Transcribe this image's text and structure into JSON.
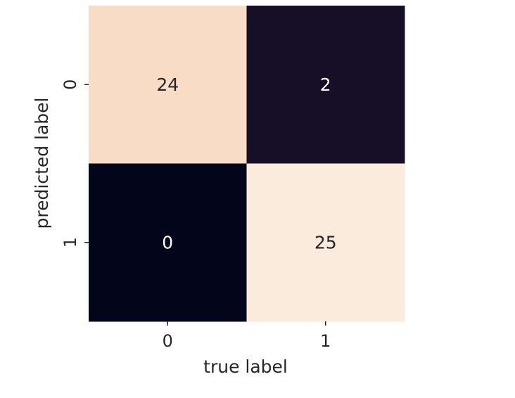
{
  "chart_data": {
    "type": "heatmap",
    "title": "",
    "xlabel": "true label",
    "ylabel": "predicted label",
    "x_categories": [
      "0",
      "1"
    ],
    "y_categories": [
      "0",
      "1"
    ],
    "values": [
      [
        24,
        2
      ],
      [
        0,
        25
      ]
    ],
    "colorbar": false,
    "colors": {
      "min": "#03051a",
      "max": "#faebdd",
      "text_on_light": "#262626",
      "text_on_dark": "#ffffff"
    }
  }
}
